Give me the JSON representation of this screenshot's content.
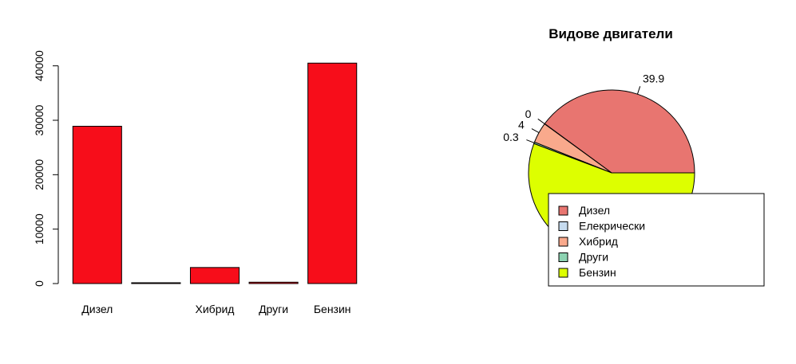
{
  "chart_data": [
    {
      "type": "bar",
      "categories": [
        "Дизел",
        "",
        "Хибрид",
        "Други",
        "Бензин"
      ],
      "values": [
        28900,
        150,
        2950,
        250,
        40500
      ],
      "bar_color": "#f70d1a",
      "yticks": [
        "0",
        "10000",
        "20000",
        "30000",
        "40000"
      ],
      "ylim": [
        0,
        40500
      ],
      "grid": false
    },
    {
      "type": "pie",
      "title": "Видове двигатели",
      "series": [
        {
          "name": "Дизел",
          "value": 39.9,
          "label": "39.9",
          "color": "#e87570"
        },
        {
          "name": "Елекрически",
          "value": 0.05,
          "label": "0",
          "color": "#c6dbef"
        },
        {
          "name": "Хибрид",
          "value": 4,
          "label": "4",
          "color": "#f9a98c"
        },
        {
          "name": "Други",
          "value": 0.3,
          "label": "0.3",
          "color": "#8dd3b2"
        },
        {
          "name": "Бензин",
          "value": 55.75,
          "label": "",
          "color": "#ddff00"
        }
      ],
      "legend": {
        "placement": "bottom-right",
        "items": [
          "Дизел",
          "Елекрически",
          "Хибрид",
          "Други",
          "Бензин"
        ]
      }
    }
  ]
}
